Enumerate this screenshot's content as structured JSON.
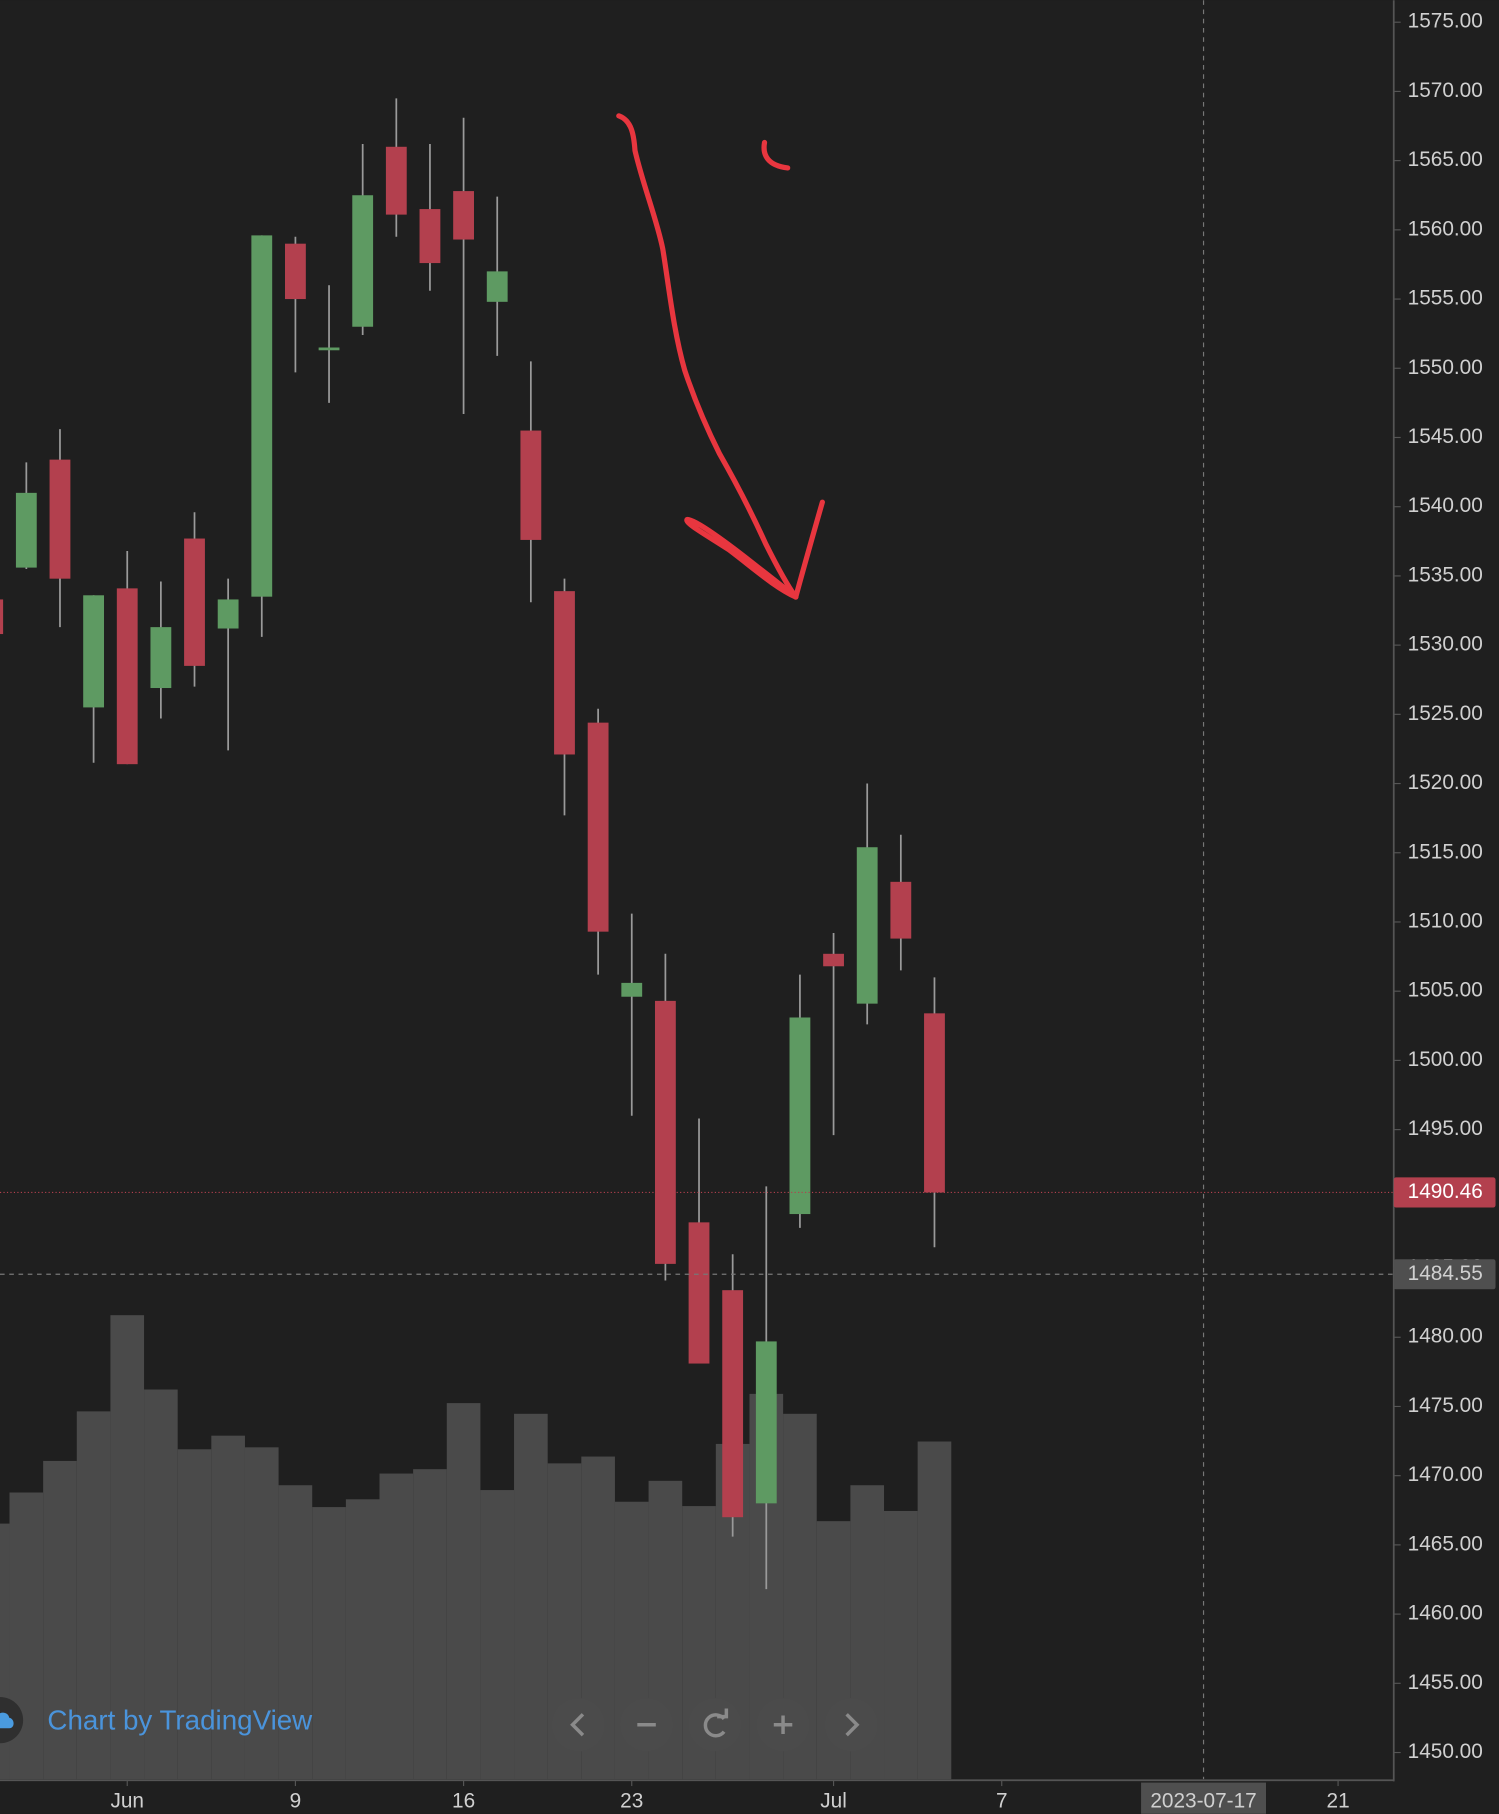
{
  "chart_data": {
    "type": "candlestick",
    "x": [
      -4,
      -3,
      -2,
      -1,
      0,
      1,
      2,
      3,
      4,
      5,
      6,
      7,
      8,
      9,
      10,
      11,
      12,
      13,
      14,
      15,
      16,
      17,
      18,
      19,
      20,
      21,
      22,
      23,
      24
    ],
    "open": [
      1533.3,
      1535.6,
      1543.4,
      1525.5,
      1534.1,
      1526.9,
      1537.7,
      1531.2,
      1533.5,
      1559.0,
      1551.3,
      1553.0,
      1566.0,
      1561.5,
      1562.8,
      1554.8,
      1545.5,
      1533.9,
      1524.4,
      1504.6,
      1504.3,
      1488.3,
      1483.4,
      1468.0,
      1488.9,
      1507.7,
      1504.1,
      1512.9,
      1503.4
    ],
    "high": [
      1533.5,
      1543.2,
      1545.6,
      1533.6,
      1536.8,
      1534.6,
      1539.6,
      1534.8,
      1559.6,
      1559.5,
      1556.0,
      1566.2,
      1569.5,
      1566.2,
      1568.1,
      1562.4,
      1550.5,
      1534.8,
      1525.4,
      1510.6,
      1507.7,
      1495.8,
      1486.0,
      1490.9,
      1506.2,
      1509.2,
      1520.0,
      1516.3,
      1506.0
    ],
    "low": [
      1530.5,
      1535.5,
      1531.3,
      1521.5,
      1521.4,
      1524.7,
      1527.0,
      1522.4,
      1530.6,
      1549.7,
      1547.5,
      1552.4,
      1559.5,
      1555.6,
      1546.7,
      1550.9,
      1533.1,
      1517.7,
      1506.2,
      1496.0,
      1484.1,
      1478.1,
      1465.6,
      1461.8,
      1487.9,
      1494.6,
      1502.6,
      1506.5,
      1486.5
    ],
    "close": [
      1530.8,
      1541.0,
      1534.8,
      1533.6,
      1521.4,
      1531.3,
      1528.5,
      1533.3,
      1559.6,
      1555.0,
      1551.5,
      1562.5,
      1561.1,
      1557.6,
      1559.3,
      1557.0,
      1537.6,
      1522.1,
      1509.3,
      1505.6,
      1485.3,
      1478.1,
      1467.0,
      1479.7,
      1503.1,
      1506.8,
      1515.4,
      1508.8,
      1490.46
    ],
    "volume": [
      52.6,
      59.0,
      65.5,
      75.7,
      95.5,
      80.2,
      67.9,
      70.7,
      68.3,
      60.5,
      56.0,
      57.6,
      62.9,
      63.8,
      77.4,
      59.5,
      75.2,
      65.0,
      66.4,
      57.1,
      61.4,
      56.2,
      69.0,
      79.3,
      75.2,
      53.1,
      60.5,
      55.2,
      69.5
    ],
    "volume_lim": [
      0,
      366.2
    ],
    "up_color": "#5e9a62",
    "down_color": "#b3404e",
    "volume_color": "#4a4a4a",
    "xlim": [
      -3.783,
      37.655
    ],
    "xticks": [
      {
        "value": 0,
        "label": "Jun"
      },
      {
        "value": 5,
        "label": "9"
      },
      {
        "value": 10,
        "label": "16"
      },
      {
        "value": 15,
        "label": "23"
      },
      {
        "value": 21,
        "label": "Jul"
      },
      {
        "value": 26,
        "label": "7"
      },
      {
        "value": 36,
        "label": "21"
      }
    ],
    "ylim": [
      1448.08,
      1576.59
    ],
    "yticks": [
      {
        "value": 1450,
        "label": "1450.00"
      },
      {
        "value": 1455,
        "label": "1455.00"
      },
      {
        "value": 1460,
        "label": "1460.00"
      },
      {
        "value": 1465,
        "label": "1465.00"
      },
      {
        "value": 1470,
        "label": "1470.00"
      },
      {
        "value": 1475,
        "label": "1475.00"
      },
      {
        "value": 1480,
        "label": "1480.00"
      },
      {
        "value": 1485,
        "label": "1485.00"
      },
      {
        "value": 1490,
        "label": "1490.00"
      },
      {
        "value": 1495,
        "label": "1495.00"
      },
      {
        "value": 1500,
        "label": "1500.00"
      },
      {
        "value": 1505,
        "label": "1505.00"
      },
      {
        "value": 1510,
        "label": "1510.00"
      },
      {
        "value": 1515,
        "label": "1515.00"
      },
      {
        "value": 1520,
        "label": "1520.00"
      },
      {
        "value": 1525,
        "label": "1525.00"
      },
      {
        "value": 1530,
        "label": "1530.00"
      },
      {
        "value": 1535,
        "label": "1535.00"
      },
      {
        "value": 1540,
        "label": "1540.00"
      },
      {
        "value": 1545,
        "label": "1545.00"
      },
      {
        "value": 1550,
        "label": "1550.00"
      },
      {
        "value": 1555,
        "label": "1555.00"
      },
      {
        "value": 1560,
        "label": "1560.00"
      },
      {
        "value": 1565,
        "label": "1565.00"
      },
      {
        "value": 1570,
        "label": "1570.00"
      },
      {
        "value": 1575,
        "label": "1575.00"
      }
    ],
    "grid": true,
    "last_price": 1490.46,
    "crosshair_y": 1484.55,
    "crosshair_x": {
      "value": 32,
      "label": "2023-07-17"
    }
  },
  "branding": "Chart by TradingView"
}
